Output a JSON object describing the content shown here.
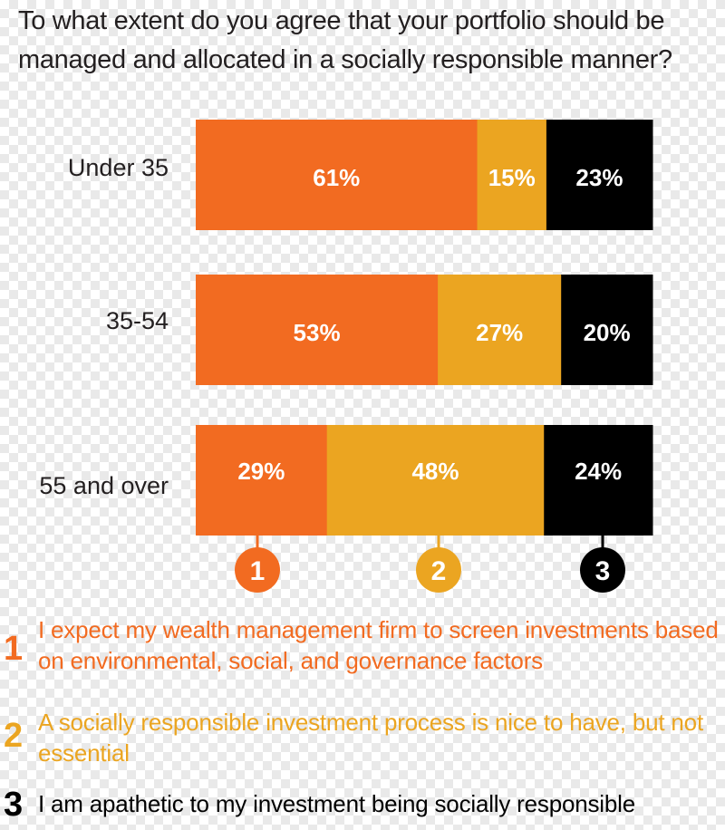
{
  "question": "To what extent do you agree that your portfolio should be managed and allocated in a socially responsible manner?",
  "colors": {
    "option1": "#f26b21",
    "option2": "#eba521",
    "option3": "#000000",
    "text": "#231f20"
  },
  "chart_data": {
    "type": "bar",
    "orientation": "horizontal",
    "stacked": true,
    "title": "To what extent do you agree that your portfolio should be managed and allocated in a socially responsible manner?",
    "categories": [
      "Under 35",
      "35-54",
      "55 and over"
    ],
    "series": [
      {
        "name": "1",
        "values": [
          61,
          53,
          29
        ],
        "labels": [
          "61%",
          "53%",
          "29%"
        ]
      },
      {
        "name": "2",
        "values": [
          15,
          27,
          48
        ],
        "labels": [
          "15%",
          "27%",
          "48%"
        ]
      },
      {
        "name": "3",
        "values": [
          23,
          20,
          24
        ],
        "labels": [
          "23%",
          "20%",
          "24%"
        ]
      }
    ],
    "xlim": [
      0,
      100
    ],
    "grid": false
  },
  "legend": [
    {
      "num": "1",
      "text": "I expect my wealth management firm to screen investments based on environmental, social, and governance factors"
    },
    {
      "num": "2",
      "text": "A socially responsible investment process is nice to have, but not essential"
    },
    {
      "num": "3",
      "text": "I am apathetic to my investment being socially responsible"
    }
  ]
}
